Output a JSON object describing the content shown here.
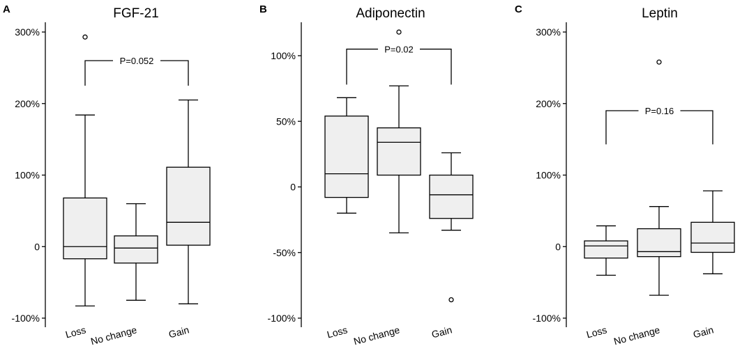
{
  "chart_data": [
    {
      "type": "boxplot",
      "panel": "A",
      "title": "FGF-21",
      "categories": [
        "Loss",
        "No change",
        "Gain"
      ],
      "ylim": [
        -100,
        310
      ],
      "yticks": [
        -100,
        0,
        100,
        200,
        300
      ],
      "ytick_labels": [
        "-100%",
        "0",
        "100%",
        "200%",
        "300%"
      ],
      "boxes": [
        {
          "name": "Loss",
          "whisker_low": -83,
          "q1": -17,
          "median": 0,
          "q3": 68,
          "whisker_high": 184,
          "outliers": [
            293
          ]
        },
        {
          "name": "No change",
          "whisker_low": -75,
          "q1": -23,
          "median": -2,
          "q3": 15,
          "whisker_high": 60,
          "outliers": []
        },
        {
          "name": "Gain",
          "whisker_low": -80,
          "q1": 2,
          "median": 34,
          "q3": 111,
          "whisker_high": 205,
          "outliers": []
        }
      ],
      "bracket": {
        "from": "Loss",
        "to": "Gain",
        "label": "P=0.052",
        "y": 260,
        "leg_bottom": 225
      }
    },
    {
      "type": "boxplot",
      "panel": "B",
      "title": "Adiponectin",
      "categories": [
        "Loss",
        "No change",
        "Gain"
      ],
      "ylim": [
        -100,
        125
      ],
      "yticks": [
        -100,
        -50,
        0,
        50,
        100
      ],
      "ytick_labels": [
        "-100%",
        "-50%",
        "0",
        "50%",
        "100%"
      ],
      "boxes": [
        {
          "name": "Loss",
          "whisker_low": -20,
          "q1": -8,
          "median": 10,
          "q3": 54,
          "whisker_high": 68,
          "outliers": []
        },
        {
          "name": "No change",
          "whisker_low": -35,
          "q1": 9,
          "median": 34,
          "q3": 45,
          "whisker_high": 77,
          "outliers": [
            118
          ]
        },
        {
          "name": "Gain",
          "whisker_low": -33,
          "q1": -24,
          "median": -6,
          "q3": 9,
          "whisker_high": 26,
          "outliers": [
            -86
          ]
        }
      ],
      "bracket": {
        "from": "Loss",
        "to": "Gain",
        "label": "P=0.02",
        "y": 105,
        "leg_bottom": 78
      }
    },
    {
      "type": "boxplot",
      "panel": "C",
      "title": "Leptin",
      "categories": [
        "Loss",
        "No change",
        "Gain"
      ],
      "ylim": [
        -100,
        310
      ],
      "yticks": [
        -100,
        0,
        100,
        200,
        300
      ],
      "ytick_labels": [
        "-100%",
        "0",
        "100%",
        "200%",
        "300%"
      ],
      "boxes": [
        {
          "name": "Loss",
          "whisker_low": -40,
          "q1": -16,
          "median": 1,
          "q3": 8,
          "whisker_high": 29,
          "outliers": []
        },
        {
          "name": "No change",
          "whisker_low": -68,
          "q1": -14,
          "median": -7,
          "q3": 25,
          "whisker_high": 56,
          "outliers": [
            258
          ]
        },
        {
          "name": "Gain",
          "whisker_low": -38,
          "q1": -8,
          "median": 5,
          "q3": 34,
          "whisker_high": 78,
          "outliers": []
        }
      ],
      "bracket": {
        "from": "Loss",
        "to": "Gain",
        "label": "P=0.16",
        "y": 190,
        "leg_bottom": 143
      }
    }
  ]
}
